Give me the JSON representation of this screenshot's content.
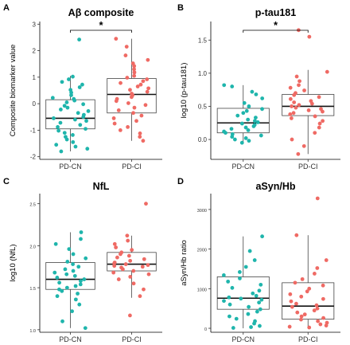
{
  "chart_data": [
    {
      "type": "box-swarm",
      "panel": "A",
      "title": "Aβ composite",
      "ylabel": "Composite biomarker value",
      "categories": [
        "PD-CN",
        "PD-CI"
      ],
      "colors": [
        "#1fb5ac",
        "#ef6a64"
      ],
      "ylim": [
        -2.1,
        3.1
      ],
      "yticks": [
        -2,
        -1,
        0,
        1,
        2,
        3
      ],
      "ytick_labels": [
        "-2",
        "-1",
        "0",
        "1",
        "2",
        "3"
      ],
      "small_ticks": false,
      "significance": "*",
      "boxes": [
        {
          "q1": -0.95,
          "median": -0.55,
          "q3": 0.15,
          "whisker_low": -1.8,
          "whisker_high": 1.05
        },
        {
          "q1": -0.35,
          "median": 0.35,
          "q3": 0.95,
          "whisker_low": -1.4,
          "whisker_high": 2.45
        }
      ],
      "series": [
        {
          "values": [
            2.42,
            1.02,
            0.92,
            0.82,
            0.72,
            0.62,
            0.52,
            0.42,
            0.32,
            0.22,
            0.18,
            0.12,
            0.05,
            -0.02,
            -0.08,
            -0.15,
            -0.22,
            -0.28,
            -0.35,
            -0.42,
            -0.5,
            -0.55,
            -0.6,
            -0.65,
            -0.72,
            -0.8,
            -0.88,
            -0.95,
            -1.02,
            -1.1,
            -1.18,
            -1.25,
            -1.35,
            -1.45,
            -1.55,
            -1.62,
            -1.7,
            -1.8
          ]
        },
        {
          "values": [
            2.45,
            2.15,
            1.82,
            1.65,
            1.52,
            1.42,
            1.3,
            1.18,
            1.05,
            0.98,
            0.92,
            0.85,
            0.78,
            0.72,
            0.65,
            0.58,
            0.52,
            0.45,
            0.38,
            0.32,
            0.25,
            0.18,
            0.1,
            0.02,
            -0.05,
            -0.15,
            -0.25,
            -0.35,
            -0.45,
            -0.55,
            -0.65,
            -0.75,
            -0.88,
            -1.0,
            -1.12,
            -1.25,
            -1.4
          ]
        }
      ]
    },
    {
      "type": "box-swarm",
      "panel": "B",
      "title": "p-tau181",
      "ylabel": "log10 (p-tau181)",
      "categories": [
        "PD-CN",
        "PD-CI"
      ],
      "colors": [
        "#1fb5ac",
        "#ef6a64"
      ],
      "ylim": [
        -0.3,
        1.78
      ],
      "yticks": [
        0.0,
        0.5,
        1.0,
        1.5
      ],
      "ytick_labels": [
        "0.0",
        "0.5",
        "1.0",
        "1.5"
      ],
      "small_ticks": false,
      "significance": "*",
      "boxes": [
        {
          "q1": 0.1,
          "median": 0.25,
          "q3": 0.47,
          "whisker_low": -0.05,
          "whisker_high": 0.82
        },
        {
          "q1": 0.36,
          "median": 0.5,
          "q3": 0.68,
          "whisker_low": -0.22,
          "whisker_high": 1.05
        }
      ],
      "series": [
        {
          "values": [
            0.82,
            0.8,
            0.72,
            0.68,
            0.62,
            0.55,
            0.5,
            0.46,
            0.43,
            0.4,
            0.36,
            0.33,
            0.3,
            0.28,
            0.26,
            0.24,
            0.22,
            0.2,
            0.18,
            0.16,
            0.14,
            0.12,
            0.1,
            0.08,
            0.06,
            0.04,
            0.02,
            0.0,
            -0.02,
            -0.05
          ]
        },
        {
          "values": [
            1.65,
            1.55,
            1.02,
            0.95,
            0.88,
            0.82,
            0.78,
            0.74,
            0.7,
            0.67,
            0.64,
            0.61,
            0.58,
            0.56,
            0.54,
            0.52,
            0.5,
            0.48,
            0.46,
            0.44,
            0.42,
            0.4,
            0.38,
            0.35,
            0.32,
            0.28,
            0.24,
            0.18,
            0.1,
            0.0,
            -0.1,
            -0.22
          ]
        }
      ]
    },
    {
      "type": "box-swarm",
      "panel": "C",
      "title": "NfL",
      "ylabel": "log10 (NfL)",
      "categories": [
        "PD-CN",
        "PD-CI"
      ],
      "colors": [
        "#1fb5ac",
        "#ef6a64"
      ],
      "ylim": [
        0.97,
        2.62
      ],
      "yticks": [
        1.0,
        1.5,
        2.0,
        2.5
      ],
      "ytick_labels": [
        "1.0",
        "1.5",
        "2.0",
        "2.5"
      ],
      "small_ticks": true,
      "significance": "",
      "boxes": [
        {
          "q1": 1.48,
          "median": 1.6,
          "q3": 1.8,
          "whisker_low": 1.02,
          "whisker_high": 2.16
        },
        {
          "q1": 1.7,
          "median": 1.78,
          "q3": 1.92,
          "whisker_low": 1.38,
          "whisker_high": 2.12
        }
      ],
      "series": [
        {
          "values": [
            2.16,
            2.08,
            2.02,
            1.96,
            1.9,
            1.85,
            1.81,
            1.78,
            1.75,
            1.72,
            1.7,
            1.68,
            1.66,
            1.64,
            1.62,
            1.6,
            1.58,
            1.56,
            1.54,
            1.52,
            1.5,
            1.48,
            1.46,
            1.43,
            1.4,
            1.36,
            1.3,
            1.22,
            1.1,
            1.02
          ]
        },
        {
          "values": [
            2.5,
            2.12,
            2.06,
            2.02,
            1.98,
            1.95,
            1.92,
            1.9,
            1.88,
            1.86,
            1.84,
            1.82,
            1.8,
            1.79,
            1.78,
            1.77,
            1.76,
            1.75,
            1.74,
            1.72,
            1.7,
            1.68,
            1.66,
            1.63,
            1.6,
            1.55,
            1.48,
            1.4,
            1.17
          ]
        }
      ]
    },
    {
      "type": "box-swarm",
      "panel": "D",
      "title": "aSyn/Hb",
      "ylabel": "aSyn/Hb ratio",
      "categories": [
        "PD-CN",
        "PD-CI"
      ],
      "colors": [
        "#1fb5ac",
        "#ef6a64"
      ],
      "ylim": [
        -100,
        3400
      ],
      "yticks": [
        0,
        1000,
        2000,
        3000
      ],
      "ytick_labels": [
        "0",
        "1000",
        "2000",
        "3000"
      ],
      "small_ticks": true,
      "significance": "",
      "boxes": [
        {
          "q1": 480,
          "median": 760,
          "q3": 1300,
          "whisker_low": 0,
          "whisker_high": 2320
        },
        {
          "q1": 230,
          "median": 560,
          "q3": 1150,
          "whisker_low": 0,
          "whisker_high": 2350
        }
      ],
      "series": [
        {
          "values": [
            2320,
            1950,
            1720,
            1550,
            1420,
            1340,
            1260,
            1180,
            1100,
            1020,
            950,
            880,
            820,
            780,
            750,
            720,
            690,
            650,
            600,
            540,
            480,
            420,
            360,
            300,
            240,
            180,
            120,
            60,
            30,
            10
          ]
        },
        {
          "values": [
            3280,
            2350,
            1720,
            1520,
            1380,
            1240,
            1150,
            1080,
            1000,
            930,
            860,
            800,
            740,
            680,
            620,
            580,
            540,
            500,
            450,
            400,
            350,
            300,
            260,
            220,
            180,
            140,
            100,
            70,
            40,
            20
          ]
        }
      ]
    }
  ]
}
